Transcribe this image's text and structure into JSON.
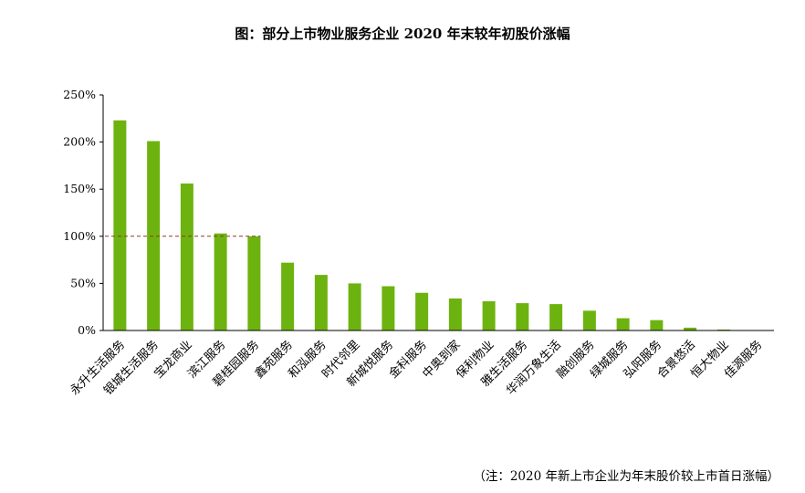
{
  "chart_data": {
    "type": "bar",
    "title": "图：部分上市物业服务企业 2020 年末较年初股价涨幅",
    "note": "（注：2020 年新上市企业为年末股价较上市首日涨幅）",
    "categories": [
      "永升生活服务",
      "银城生活服务",
      "宝龙商业",
      "滨江服务",
      "碧桂园服务",
      "鑫苑服务",
      "和泓服务",
      "时代邻里",
      "新城悦服务",
      "金科服务",
      "中奥到家",
      "保利物业",
      "雅生活服务",
      "华润万象生活",
      "融创服务",
      "绿城服务",
      "弘阳服务",
      "合景悠活",
      "恒大物业",
      "佳源服务"
    ],
    "values": [
      223,
      201,
      156,
      103,
      100,
      72,
      59,
      50,
      47,
      40,
      34,
      31,
      29,
      28,
      21,
      13,
      11,
      3,
      1,
      0
    ],
    "yticks": [
      "250%",
      "200%",
      "150%",
      "100%",
      "50%",
      "0%"
    ],
    "ylim": [
      0,
      250
    ],
    "reference_line": 100,
    "bar_color": "#6db30f",
    "ref_line_color": "#8b3a2e"
  }
}
